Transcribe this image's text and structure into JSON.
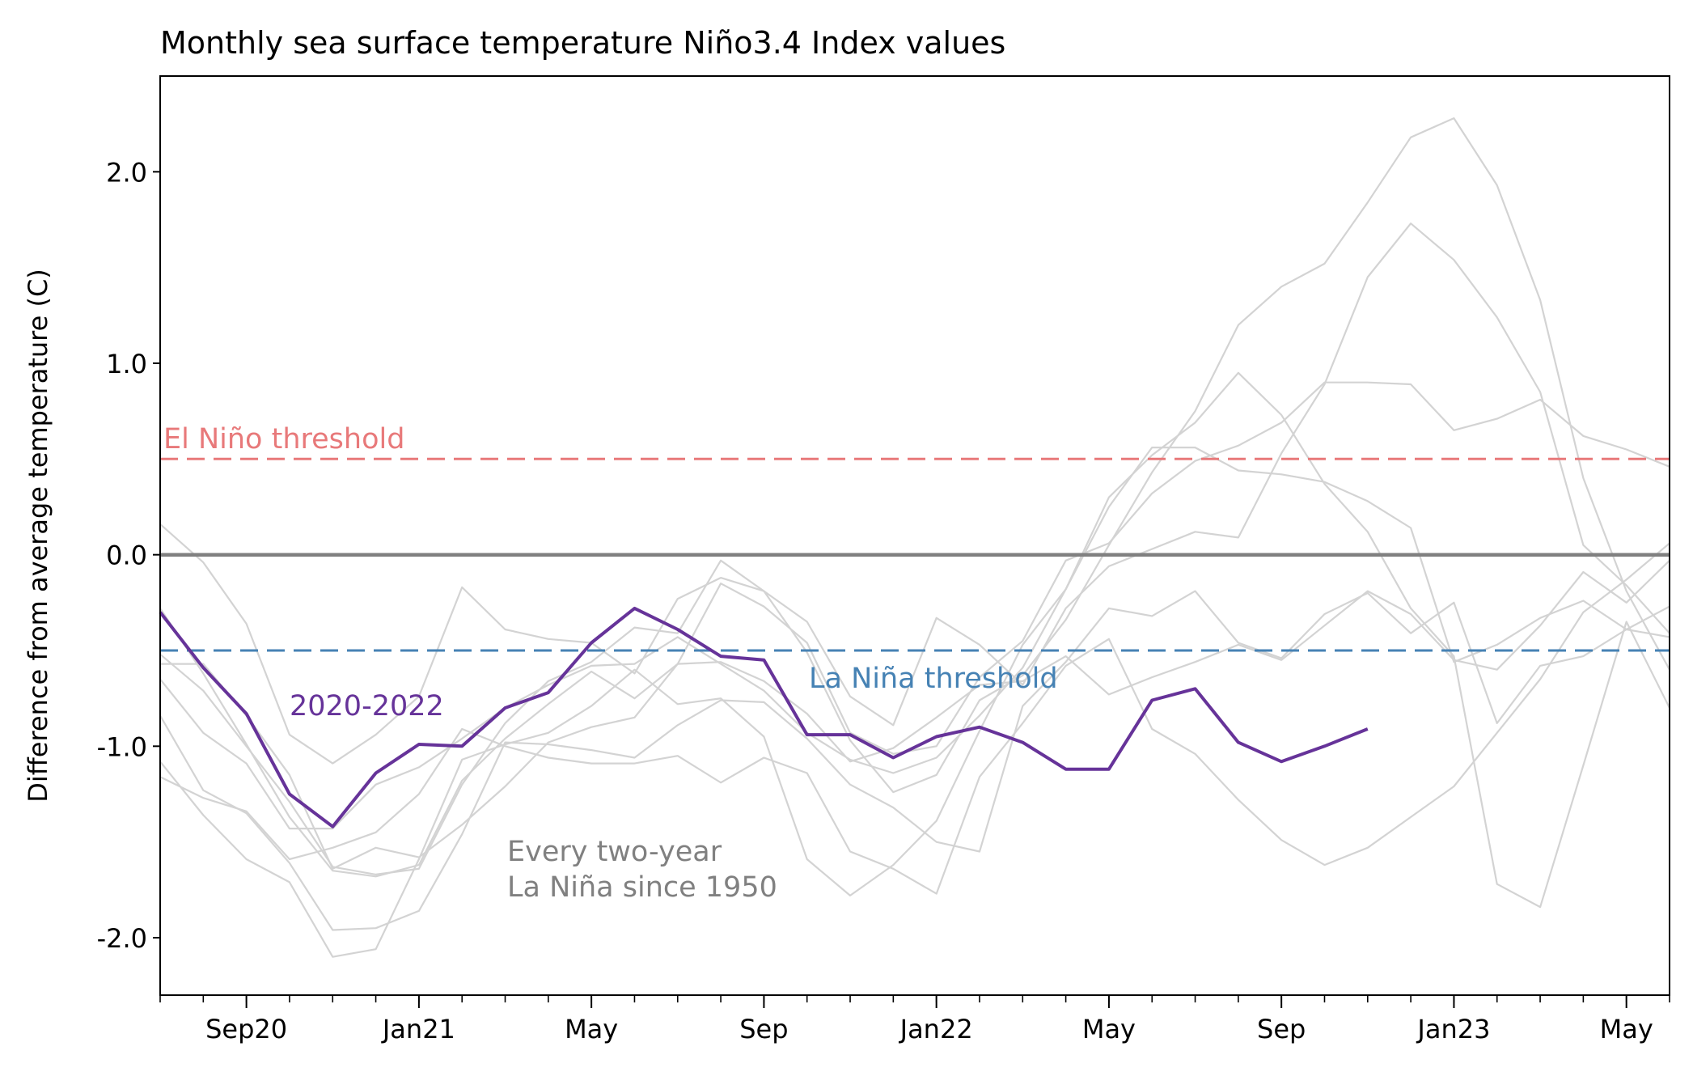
{
  "chart_data": {
    "type": "line",
    "title": "Monthly sea surface temperature Niño3.4 Index values",
    "ylabel": "Difference from average temperature (C)",
    "xlabel": "",
    "x_start": "Jul 2020",
    "x_end": "Jun 2023",
    "xlim_months": [
      "2020-07",
      "2023-06"
    ],
    "ylim": [
      -2.3,
      2.5
    ],
    "yticks": [
      2.0,
      1.0,
      0.0,
      -1.0,
      -2.0
    ],
    "ytick_labels": [
      "2.0",
      "1.0",
      "0.0",
      "-1.0",
      "-2.0"
    ],
    "xtick_labels": [
      {
        "month": "2020-09",
        "label": "Sep20"
      },
      {
        "month": "2021-01",
        "label": "Jan21"
      },
      {
        "month": "2021-05",
        "label": "May"
      },
      {
        "month": "2021-09",
        "label": "Sep"
      },
      {
        "month": "2022-01",
        "label": "Jan22"
      },
      {
        "month": "2022-05",
        "label": "May"
      },
      {
        "month": "2022-09",
        "label": "Sep"
      },
      {
        "month": "2023-01",
        "label": "Jan23"
      },
      {
        "month": "2023-05",
        "label": "May"
      }
    ],
    "grid": false,
    "reference_lines": [
      {
        "label": "El Niño threshold",
        "y": 0.5,
        "style": "dashed",
        "color": "#e8797a"
      },
      {
        "label": "",
        "y": 0.0,
        "style": "solid",
        "color": "#808080"
      },
      {
        "label": "La Niña threshold",
        "y": -0.5,
        "style": "dashed",
        "color": "#4682b4"
      }
    ],
    "highlight_series": {
      "name": "2020-2022",
      "color": "#663399",
      "start_month": "2020-07",
      "values": [
        -0.3,
        -0.59,
        -0.83,
        -1.25,
        -1.42,
        -1.14,
        -0.99,
        -1.0,
        -0.8,
        -0.72,
        -0.46,
        -0.28,
        -0.39,
        -0.53,
        -0.55,
        -0.94,
        -0.94,
        -1.06,
        -0.95,
        -0.9,
        -0.98,
        -1.12,
        -1.12,
        -0.76,
        -0.7,
        -0.98,
        -1.08,
        -1.0,
        -0.91
      ]
    },
    "background_series_label": "Every two-year\nLa Niña since 1950",
    "background_series_color": "#d3d3d3",
    "background_series": [
      {
        "start_month": "2020-07",
        "values": [
          0.16,
          -0.04,
          -0.36,
          -0.94,
          -1.09,
          -0.94,
          -0.74,
          -0.17,
          -0.39,
          -0.44,
          -0.46,
          -0.62,
          -0.23,
          -0.12,
          -0.19,
          -0.35,
          -0.74,
          -0.89,
          -0.33,
          -0.47,
          -0.68,
          -0.28,
          -0.06,
          0.03,
          0.12,
          0.09,
          0.53,
          0.89,
          1.45,
          1.73,
          1.54,
          1.24,
          0.85,
          0.05,
          -0.16,
          -0.41
        ]
      },
      {
        "start_month": "2020-07",
        "values": [
          -0.28,
          -0.62,
          -0.99,
          -1.37,
          -1.65,
          -1.68,
          -1.62,
          -1.18,
          -0.96,
          -0.78,
          -0.61,
          -0.75,
          -0.57,
          -0.15,
          -0.27,
          -0.46,
          -0.93,
          -1.04,
          -1.0,
          -0.64,
          -0.45,
          -0.03,
          0.06,
          0.32,
          0.49,
          0.57,
          0.69,
          0.9,
          0.9,
          0.89,
          0.65,
          0.71,
          0.81,
          0.62,
          0.55,
          0.46
        ]
      },
      {
        "start_month": "2020-07",
        "values": [
          -0.52,
          -0.71,
          -1.0,
          -1.29,
          -1.63,
          -1.67,
          -1.64,
          -1.2,
          -0.88,
          -0.66,
          -0.56,
          -0.38,
          -0.41,
          -0.03,
          -0.19,
          -0.51,
          -0.97,
          -1.24,
          -1.15,
          -0.76,
          -0.63,
          -0.34,
          0.05,
          0.43,
          0.75,
          1.2,
          1.4,
          1.52,
          1.84,
          2.18,
          2.28,
          1.93,
          1.33,
          0.4,
          -0.19,
          -0.6
        ]
      },
      {
        "start_month": "2020-07",
        "values": [
          -0.57,
          -0.57,
          -0.84,
          -1.15,
          -1.64,
          -1.53,
          -1.58,
          -1.41,
          -1.21,
          -0.98,
          -0.9,
          -0.85,
          -0.57,
          -0.56,
          -0.66,
          -0.83,
          -1.08,
          -1.01,
          -0.85,
          -0.68,
          -0.66,
          -0.53,
          -0.73,
          -0.64,
          -0.56,
          -0.47,
          -0.55,
          -0.37,
          -0.19,
          -0.31,
          -0.55,
          -0.6,
          -0.37,
          -0.09,
          -0.25,
          -0.03
        ]
      },
      {
        "start_month": "2020-07",
        "values": [
          -0.65,
          -0.93,
          -1.09,
          -1.43,
          -1.43,
          -1.2,
          -1.11,
          -0.96,
          -0.8,
          -0.68,
          -0.58,
          -0.57,
          -0.43,
          -0.57,
          -0.71,
          -0.93,
          -1.07,
          -1.14,
          -1.06,
          -0.84,
          -0.59,
          -0.18,
          0.25,
          0.56,
          0.56,
          0.44,
          0.42,
          0.38,
          0.28,
          0.14,
          -0.56,
          -0.47,
          -0.33,
          -0.24,
          -0.39,
          -0.43
        ]
      },
      {
        "start_month": "2020-07",
        "values": [
          -0.84,
          -1.23,
          -1.35,
          -1.61,
          -1.96,
          -1.95,
          -1.86,
          -1.46,
          -0.98,
          -0.99,
          -1.02,
          -1.06,
          -0.89,
          -0.76,
          -0.77,
          -0.96,
          -1.2,
          -1.32,
          -1.5,
          -1.55,
          -0.79,
          -0.56,
          -0.28,
          -0.32,
          -0.19,
          -0.46,
          -0.54,
          -0.31,
          -0.2,
          -0.41,
          -0.25,
          -0.88,
          -0.58,
          -0.53,
          -0.39,
          -0.27
        ]
      },
      {
        "start_month": "2020-07",
        "values": [
          -1.08,
          -1.36,
          -1.59,
          -1.71,
          -2.1,
          -2.06,
          -1.59,
          -1.07,
          -0.99,
          -0.93,
          -0.79,
          -0.6,
          -0.78,
          -0.75,
          -0.95,
          -1.59,
          -1.78,
          -1.62,
          -1.39,
          -0.92,
          -0.47,
          -0.18,
          0.3,
          0.52,
          0.69,
          0.95,
          0.73,
          0.37,
          0.12,
          -0.28,
          -0.53,
          -1.72,
          -1.84,
          -1.1,
          -0.35,
          -0.8
        ]
      },
      {
        "start_month": "2020-07",
        "values": [
          -1.16,
          -1.27,
          -1.34,
          -1.59,
          -1.53,
          -1.45,
          -1.25,
          -0.91,
          -1.0,
          -1.06,
          -1.09,
          -1.09,
          -1.05,
          -1.19,
          -1.06,
          -1.14,
          -1.55,
          -1.64,
          -1.77,
          -1.16,
          -0.88,
          -0.58,
          -0.44,
          -0.91,
          -1.04,
          -1.28,
          -1.49,
          -1.62,
          -1.53,
          -1.37,
          -1.21,
          -0.93,
          -0.65,
          -0.3,
          -0.13,
          0.06
        ]
      }
    ]
  }
}
